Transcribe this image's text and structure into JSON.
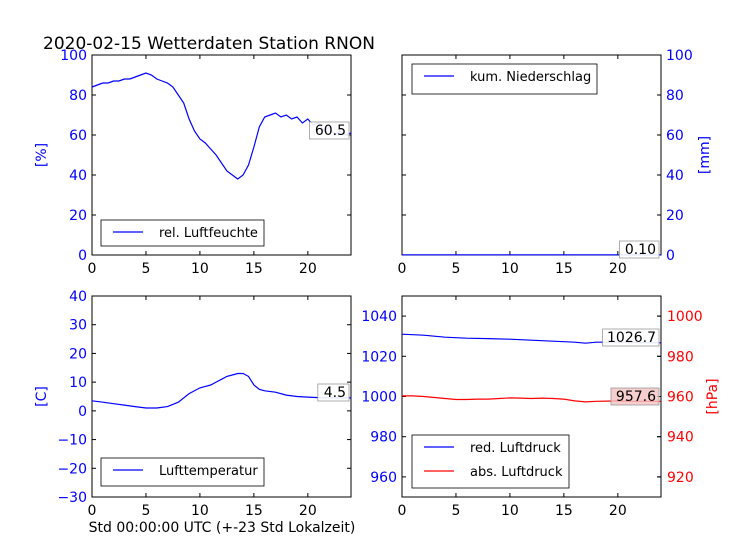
{
  "figure_title": "2020-02-15 Wetterdaten Station RNON",
  "xlabel": "Std 00:00:00 UTC (+-23 Std Lokalzeit)",
  "colors": {
    "blue": "#0000ff",
    "red": "#ff0000",
    "axes": "#000000"
  },
  "chart_data": [
    {
      "id": "humidity",
      "type": "line",
      "xlim": [
        0,
        24
      ],
      "ylim": [
        0,
        100
      ],
      "xticks": [
        0,
        5,
        10,
        15,
        20
      ],
      "yticks": [
        0,
        20,
        40,
        60,
        80,
        100
      ],
      "ylabel": "[%]",
      "legend": {
        "location": "lower-left"
      },
      "series": [
        {
          "name": "rel. Luftfeuchte",
          "color": "#0000ff",
          "x": [
            0,
            0.5,
            1,
            1.5,
            2,
            2.5,
            3,
            3.5,
            4,
            4.5,
            5,
            5.5,
            6,
            6.5,
            7,
            7.5,
            8,
            8.5,
            9,
            9.5,
            10,
            10.5,
            11,
            11.5,
            12,
            12.5,
            13,
            13.5,
            14,
            14.5,
            15,
            15.5,
            16,
            16.5,
            17,
            17.5,
            18,
            18.5,
            19,
            19.5,
            20,
            20.5,
            21,
            21.5,
            22,
            22.5,
            23,
            23.5,
            24
          ],
          "values": [
            84,
            85,
            86,
            86,
            87,
            87,
            88,
            88,
            89,
            90,
            91,
            90,
            88,
            87,
            86,
            84,
            80,
            76,
            68,
            62,
            58,
            56,
            53,
            50,
            46,
            42,
            40,
            38,
            40,
            45,
            54,
            64,
            69,
            70,
            71,
            69,
            70,
            68,
            69,
            66,
            68,
            65,
            66,
            62,
            64,
            60,
            62,
            60,
            61
          ]
        }
      ],
      "annotation": "60.5"
    },
    {
      "id": "precipitation",
      "type": "line",
      "xlim": [
        0,
        24
      ],
      "ylim": [
        0,
        100
      ],
      "xticks": [
        0,
        5,
        10,
        15,
        20
      ],
      "yticks": [
        0,
        20,
        40,
        60,
        80,
        100
      ],
      "ylabel": "[mm]",
      "yaxis_side": "right",
      "legend": {
        "location": "top-left"
      },
      "series": [
        {
          "name": "kum. Niederschlag",
          "color": "#0000ff",
          "x": [
            0,
            24
          ],
          "values": [
            0.1,
            0.1
          ]
        }
      ],
      "annotation": "0.10"
    },
    {
      "id": "temperature",
      "type": "line",
      "xlim": [
        0,
        24
      ],
      "ylim": [
        -30,
        40
      ],
      "xticks": [
        0,
        5,
        10,
        15,
        20
      ],
      "yticks": [
        -30,
        -20,
        -10,
        0,
        10,
        20,
        30,
        40
      ],
      "ylabel": "[C]",
      "legend": {
        "location": "lower-left"
      },
      "series": [
        {
          "name": "Lufttemperatur",
          "color": "#0000ff",
          "x": [
            0,
            1,
            2,
            3,
            4,
            5,
            6,
            7,
            8,
            9,
            10,
            10.5,
            11,
            11.5,
            12,
            12.5,
            13,
            13.5,
            14,
            14.5,
            15,
            15.5,
            16,
            17,
            18,
            19,
            20,
            21,
            22,
            23,
            24
          ],
          "values": [
            3.5,
            3,
            2.5,
            2,
            1.5,
            1,
            1,
            1.5,
            3,
            6,
            8,
            8.5,
            9,
            10,
            11,
            12,
            12.5,
            13,
            13,
            12,
            9,
            7.5,
            7,
            6.5,
            5.5,
            5,
            4.8,
            4.6,
            4.5,
            4.5,
            4.5
          ]
        }
      ],
      "annotation": "4.5"
    },
    {
      "id": "pressure",
      "type": "line",
      "xlim": [
        0,
        24
      ],
      "ylim": [
        950,
        1050
      ],
      "xticks": [
        0,
        5,
        10,
        15,
        20
      ],
      "yticks": [
        960,
        980,
        1000,
        1020,
        1040
      ],
      "ylim_right": [
        910,
        1010
      ],
      "yticks_right": [
        920,
        940,
        960,
        980,
        1000
      ],
      "ylabel_right": "[hPa]",
      "legend": {
        "location": "lower-left"
      },
      "series": [
        {
          "name": "red. Luftdruck",
          "color": "#0000ff",
          "axis": "left",
          "x": [
            0,
            2,
            4,
            6,
            8,
            10,
            12,
            14,
            16,
            17,
            18,
            20,
            22,
            24
          ],
          "values": [
            1031,
            1030.5,
            1029.5,
            1029,
            1028.8,
            1028.5,
            1028,
            1027.5,
            1027,
            1026.5,
            1027,
            1027,
            1026.8,
            1026.7
          ]
        },
        {
          "name": "abs. Luftdruck",
          "color": "#ff0000",
          "axis": "right",
          "x": [
            0,
            1,
            2,
            3,
            4,
            5,
            6,
            7,
            8,
            9,
            10,
            11,
            12,
            13,
            14,
            15,
            16,
            17,
            18,
            19,
            20,
            21,
            22,
            23,
            24
          ],
          "values": [
            960.3,
            960.3,
            960,
            959.5,
            959,
            958.5,
            958.5,
            958.7,
            958.7,
            959,
            959.3,
            959.2,
            959,
            959.2,
            959,
            958.7,
            957.8,
            957.3,
            957.6,
            957.7,
            957.8,
            957.6,
            957.6,
            957.6,
            957.6
          ]
        }
      ],
      "annotations": [
        "1026.7",
        "957.6"
      ]
    }
  ]
}
